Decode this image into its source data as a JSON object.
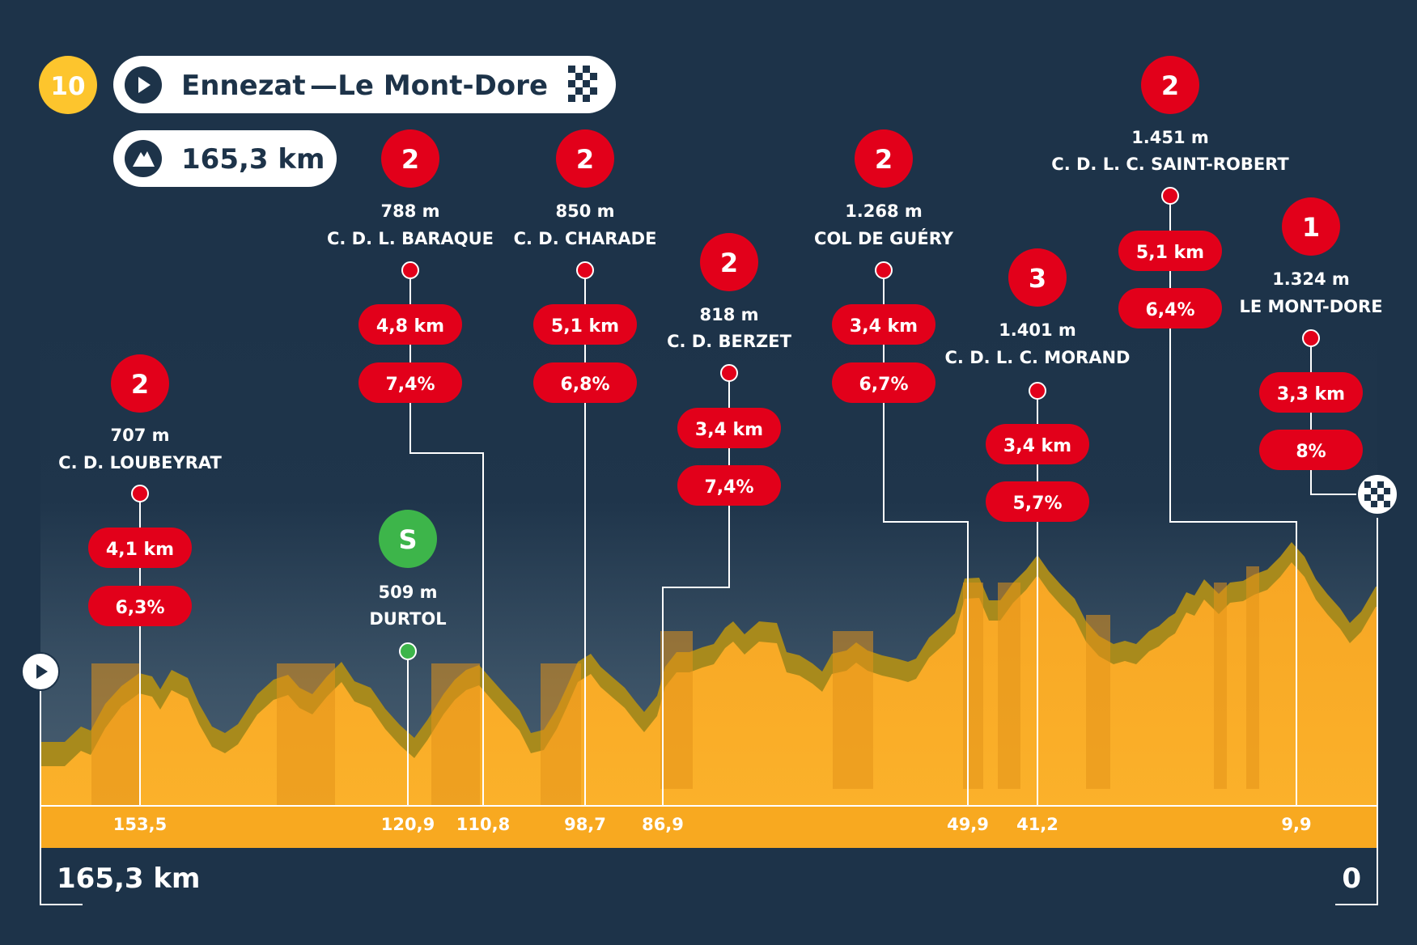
{
  "stage": {
    "number": "10",
    "start": "Ennezat",
    "separator": "—",
    "finish": "Le Mont-Dore",
    "distance": "165,3 km"
  },
  "axis": {
    "start_label": "165,3 km",
    "end_label": "0"
  },
  "colors": {
    "background": "#1d3349",
    "profile": "#f9ab1f",
    "profile_dark": "#e3941a",
    "climb_red": "#e2001a",
    "sprint_green": "#3db54a",
    "stage_badge": "#fdc52d",
    "white": "#ffffff"
  },
  "icons": {
    "start": "play-icon",
    "finish": "checkered-flag-icon",
    "distance": "mountain-icon"
  },
  "climbs": [
    {
      "category": "2",
      "altitude": "707 m",
      "name": "C. D. LOUBEYRAT",
      "length": "4,1 km",
      "gradient": "6,3%",
      "km_label": "153,5"
    },
    {
      "category": "2",
      "altitude": "788 m",
      "name": "C. D. L. BARAQUE",
      "length": "4,8 km",
      "gradient": "7,4%",
      "km_label": "110,8"
    },
    {
      "category": "2",
      "altitude": "850 m",
      "name": "C. D. CHARADE",
      "length": "5,1 km",
      "gradient": "6,8%",
      "km_label": "98,7"
    },
    {
      "category": "2",
      "altitude": "818 m",
      "name": "C. D. BERZET",
      "length": "3,4 km",
      "gradient": "7,4%",
      "km_label": "86,9"
    },
    {
      "category": "2",
      "altitude": "1.268 m",
      "name": "COL DE GUÉRY",
      "length": "3,4 km",
      "gradient": "6,7%",
      "km_label": "49,9"
    },
    {
      "category": "3",
      "altitude": "1.401 m",
      "name": "C. D. L. C. MORAND",
      "length": "3,4 km",
      "gradient": "5,7%",
      "km_label": "41,2"
    },
    {
      "category": "2",
      "altitude": "1.451 m",
      "name": "C. D. L. C. SAINT-ROBERT",
      "length": "5,1 km",
      "gradient": "6,4%",
      "km_label": "9,9"
    },
    {
      "category": "1",
      "altitude": "1.324 m",
      "name": "LE MONT-DORE",
      "length": "3,3 km",
      "gradient": "8%"
    }
  ],
  "sprint": {
    "label": "S",
    "altitude": "509 m",
    "name": "DURTOL",
    "km_label": "120,9"
  }
}
